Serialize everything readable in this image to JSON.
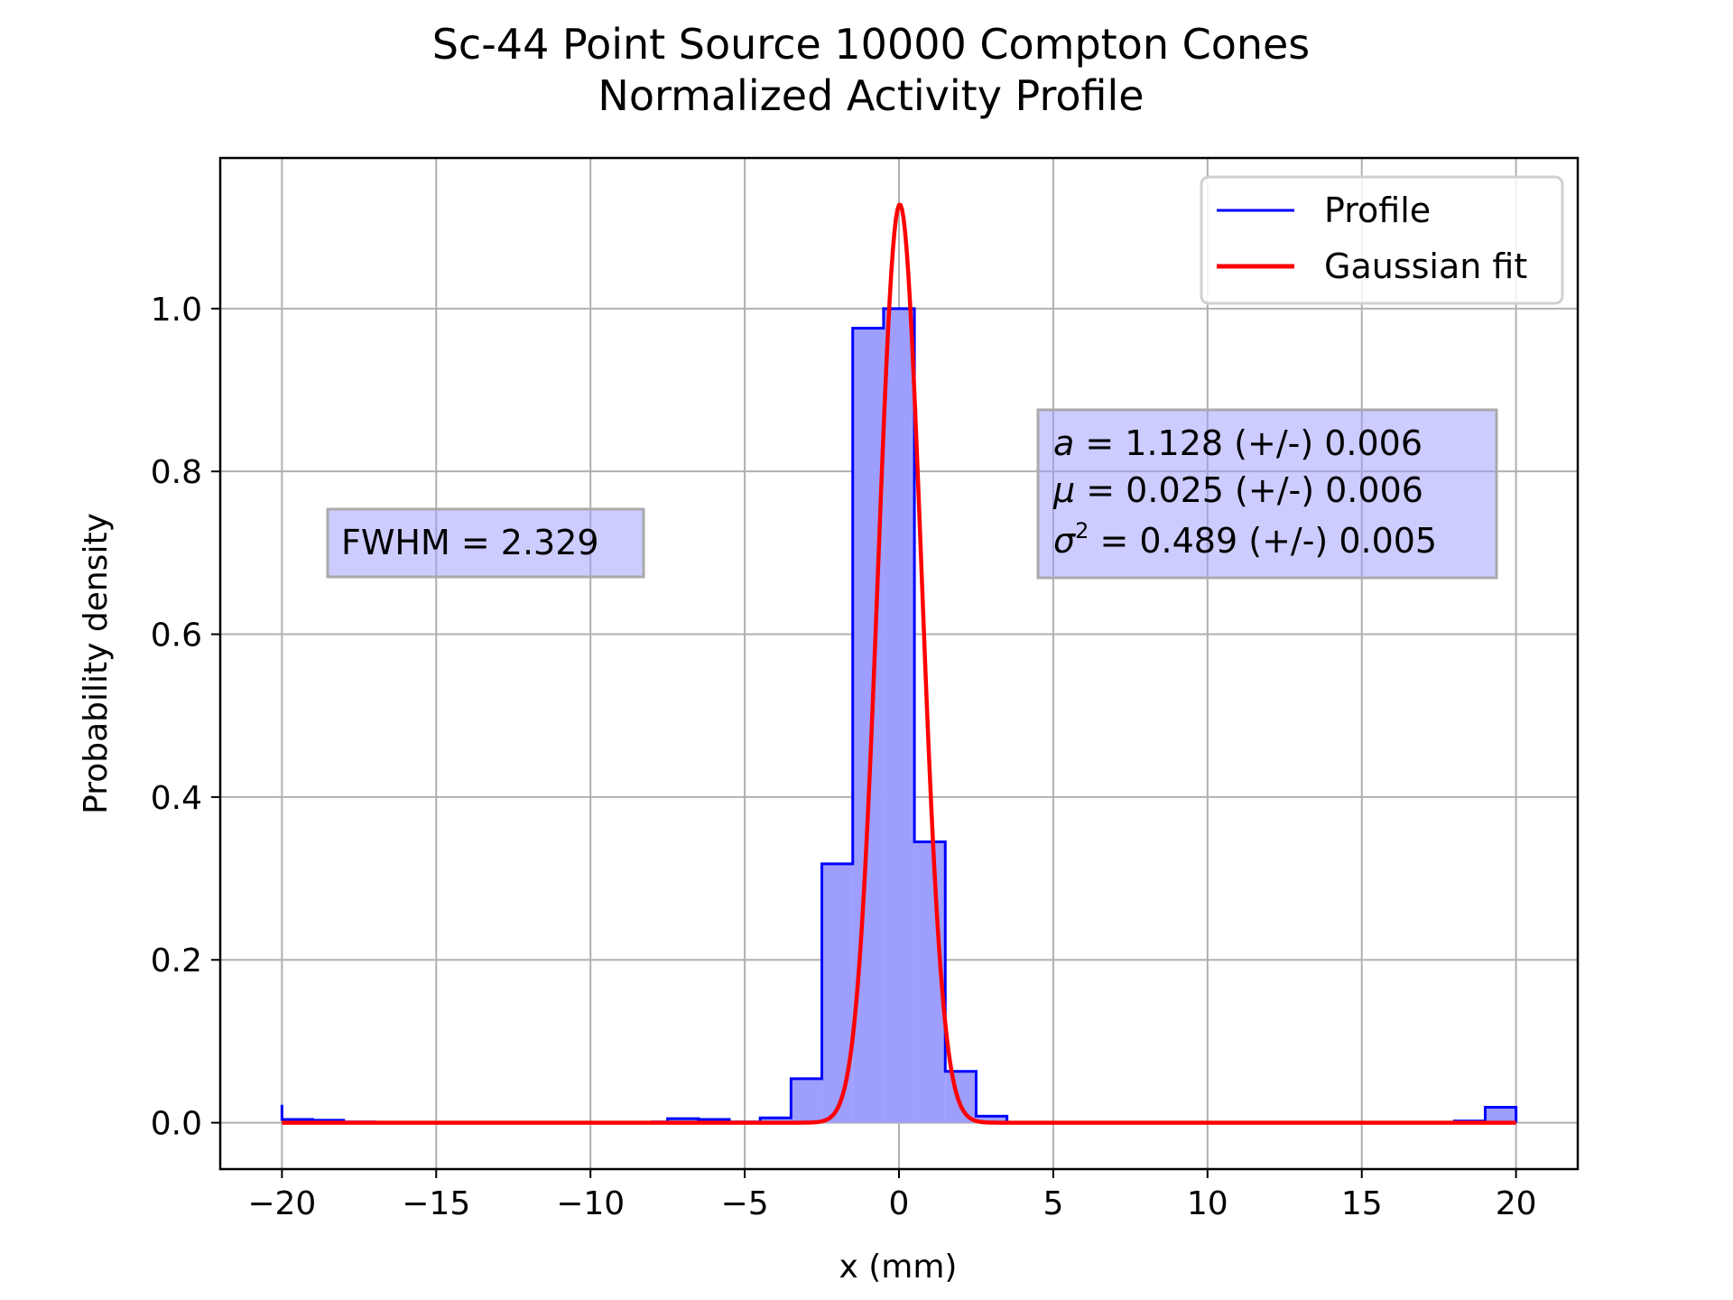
{
  "chart_data": {
    "type": "histogram-with-fit",
    "title_line1": "Sc-44 Point Source 10000 Compton Cones",
    "title_line2": "Normalized Activity Profile",
    "xlabel": "x (mm)",
    "ylabel": "Probability density",
    "xlim": [
      -22,
      22
    ],
    "ylim": [
      -0.057,
      1.185
    ],
    "xticks": [
      -20,
      -15,
      -10,
      -5,
      0,
      5,
      10,
      15,
      20
    ],
    "xtick_labels": [
      "−20",
      "−15",
      "−10",
      "−5",
      "0",
      "5",
      "10",
      "15",
      "20"
    ],
    "yticks": [
      0.0,
      0.2,
      0.4,
      0.6,
      0.8,
      1.0
    ],
    "ytick_labels": [
      "0.0",
      "0.2",
      "0.4",
      "0.6",
      "0.8",
      "1.0"
    ],
    "grid": true,
    "legend": {
      "placement": "top-right",
      "entries": [
        {
          "label": "Profile",
          "color": "#0000ff"
        },
        {
          "label": "Gaussian fit",
          "color": "#ff0000"
        }
      ]
    },
    "histogram": {
      "name": "Profile",
      "edge_color": "#0000ff",
      "fill_color": "#9e9eff",
      "bins": [
        {
          "x0": -20.0,
          "x1": -19.0,
          "y": 0.004
        },
        {
          "x0": -19.0,
          "x1": -18.0,
          "y": 0.003
        },
        {
          "x0": -18.0,
          "x1": -17.0,
          "y": 0.001
        },
        {
          "x0": -17.0,
          "x1": -8.0,
          "y": 0.0
        },
        {
          "x0": -8.0,
          "x1": -7.5,
          "y": 0.001
        },
        {
          "x0": -7.5,
          "x1": -6.5,
          "y": 0.005
        },
        {
          "x0": -6.5,
          "x1": -5.5,
          "y": 0.004
        },
        {
          "x0": -5.5,
          "x1": -4.5,
          "y": 0.001
        },
        {
          "x0": -4.5,
          "x1": -3.5,
          "y": 0.006
        },
        {
          "x0": -3.5,
          "x1": -2.5,
          "y": 0.054
        },
        {
          "x0": -2.5,
          "x1": -1.5,
          "y": 0.318
        },
        {
          "x0": -1.5,
          "x1": -0.5,
          "y": 0.976
        },
        {
          "x0": -0.5,
          "x1": 0.5,
          "y": 1.0
        },
        {
          "x0": 0.5,
          "x1": 1.5,
          "y": 0.345
        },
        {
          "x0": 1.5,
          "x1": 2.5,
          "y": 0.063
        },
        {
          "x0": 2.5,
          "x1": 3.5,
          "y": 0.008
        },
        {
          "x0": 3.5,
          "x1": 18.0,
          "y": 0.0
        },
        {
          "x0": 18.0,
          "x1": 19.0,
          "y": 0.002
        },
        {
          "x0": 19.0,
          "x1": 20.0,
          "y": 0.019
        }
      ],
      "edge_spike": {
        "x": -20.0,
        "y": 0.022
      }
    },
    "fit": {
      "name": "Gaussian fit",
      "color": "#ff0000",
      "model": "gaussian",
      "a": 1.128,
      "mu": 0.025,
      "sigma2": 0.489,
      "x_range": [
        -20,
        20
      ]
    },
    "annotations": {
      "fwhm_text": "FWHM = 2.329",
      "param_lines": [
        {
          "symbol": "a",
          "sup": "",
          "text": " = 1.128 (+/-) 0.006"
        },
        {
          "symbol": "μ",
          "sup": "",
          "text": " = 0.025 (+/-) 0.006"
        },
        {
          "symbol": "σ",
          "sup": "2",
          "text": " = 0.489 (+/-) 0.005"
        }
      ]
    }
  }
}
